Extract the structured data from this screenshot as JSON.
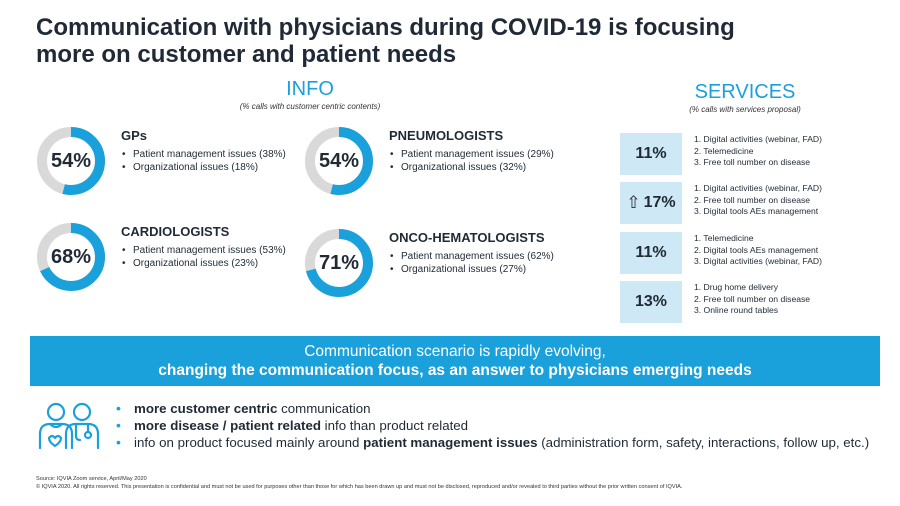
{
  "title": {
    "line1": "Communication with physicians during COVID-19 is focusing",
    "line2": "more on customer and patient needs"
  },
  "info": {
    "heading": "INFO",
    "subheading": "(% calls with customer centric contents)",
    "cards": [
      {
        "title": "GPs",
        "percent_label": "54%",
        "percent": 54,
        "items": [
          "Patient management issues (38%)",
          "Organizational issues (18%)"
        ]
      },
      {
        "title": "PNEUMOLOGISTS",
        "percent_label": "54%",
        "percent": 54,
        "items": [
          "Patient management issues (29%)",
          "Organizational issues (32%)"
        ]
      },
      {
        "title": "CARDIOLOGISTS",
        "percent_label": "68%",
        "percent": 68,
        "items": [
          "Patient management issues (53%)",
          "Organizational issues (23%)"
        ]
      },
      {
        "title": "ONCO-HEMATOLOGISTS",
        "percent_label": "71%",
        "percent": 71,
        "items": [
          "Patient management issues (62%)",
          "Organizational issues (27%)"
        ]
      }
    ]
  },
  "services": {
    "heading": "SERVICES",
    "subheading": "(% calls with services proposal)",
    "rows": [
      {
        "value": "11%",
        "arrow": "",
        "items": [
          "1.  Digital activities (webinar, FAD)",
          "2.  Telemedicine",
          "3.  Free toll number on disease"
        ]
      },
      {
        "value": "17%",
        "arrow": "⇧",
        "items": [
          "1.  Digital activities (webinar, FAD)",
          "2.  Free toll number on disease",
          "3.  Digital tools AEs management"
        ]
      },
      {
        "value": "11%",
        "arrow": "",
        "items": [
          "1.  Telemedicine",
          "2.  Digital tools AEs management",
          "3.  Digital activities (webinar, FAD)"
        ]
      },
      {
        "value": "13%",
        "arrow": "",
        "items": [
          "1.  Drug home delivery",
          "2.  Free toll number on disease",
          "3.  Online round tables"
        ]
      }
    ]
  },
  "banner": {
    "line1": "Communication scenario is rapidly evolving,",
    "line2": "changing the communication focus, as an answer to physicians emerging needs"
  },
  "bullets": [
    {
      "bold": "more customer centric",
      "rest": " communication"
    },
    {
      "bold": "more disease / patient related",
      "rest": " info than product related"
    },
    {
      "pre": "info on product focused mainly around ",
      "bold": "patient management issues",
      "rest": " (administration form, safety, interactions, follow up, etc.)"
    }
  ],
  "footer": {
    "source": "Source: IQVIA Zoom service, April/May 2020",
    "copyright": "© IQVIA 2020. All rights reserved. This presentation is confidential and must not be used for purposes other than those for which has been drawn up and must not be disclosed, reproduced and/or revealed to third parties without the prior written consent of IQVIA."
  },
  "colors": {
    "accent": "#1aa0da",
    "light_box": "#cfe8f6",
    "donut_track": "#d9d9d9",
    "text": "#1f2a36"
  },
  "icons": [
    "doctors-icon",
    "up-arrow-icon"
  ]
}
